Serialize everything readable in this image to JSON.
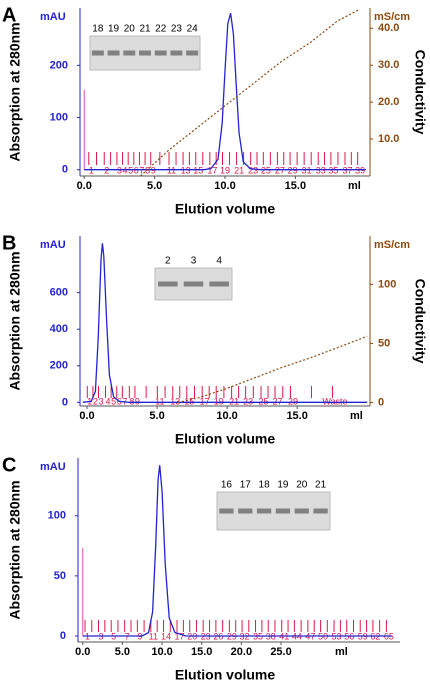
{
  "chart_data": [
    {
      "type": "line",
      "panel_label": "A",
      "y_unit": "mAU",
      "y2_unit": "mS/cm",
      "ylabel": "Absorption at 280nm",
      "y2label": "Conductivity",
      "xlabel": "Elution volume",
      "x_unit": "ml",
      "xlim": [
        -0.3,
        20.3
      ],
      "ylim": [
        -12,
        310
      ],
      "y2lim": [
        0,
        45.5
      ],
      "xticks": [
        {
          "value": 0,
          "label": "0.0"
        },
        {
          "value": 5,
          "label": "5.0"
        },
        {
          "value": 10,
          "label": "10.0"
        },
        {
          "value": 15,
          "label": "15.0"
        }
      ],
      "yticks": [
        0,
        100,
        200
      ],
      "y2ticks": [
        {
          "value": 10,
          "label": "10.0"
        },
        {
          "value": 20,
          "label": "20.0"
        },
        {
          "value": 30,
          "label": "30.0"
        },
        {
          "value": 40,
          "label": "40.0"
        }
      ],
      "series": [
        {
          "name": "Absorption",
          "color": "#2323d6",
          "axis": "y",
          "x": [
            0,
            8.5,
            9,
            9.5,
            9.8,
            10,
            10.2,
            10.4,
            10.6,
            10.8,
            11,
            11.3,
            11.8,
            12.5,
            20
          ],
          "values": [
            0,
            0,
            2,
            20,
            90,
            190,
            280,
            300,
            260,
            160,
            70,
            15,
            2,
            0,
            0
          ]
        },
        {
          "name": "Conductivity",
          "color": "#8b4a10",
          "axis": "y2",
          "dashed": true,
          "x": [
            4,
            6,
            8,
            10,
            12,
            14,
            16,
            18,
            19.5
          ],
          "values": [
            0,
            7,
            13,
            19,
            25,
            31,
            36,
            42,
            45
          ]
        }
      ],
      "fractions": {
        "color": "#e0184a",
        "labels": [
          "1",
          "2",
          "3",
          "4",
          "5",
          "6",
          "7",
          "8",
          "9",
          "11",
          "13",
          "15",
          "17",
          "19",
          "21",
          "23",
          "25",
          "27",
          "29",
          "31",
          "33",
          "35",
          "37",
          "39"
        ],
        "x": [
          0.5,
          1.6,
          2.5,
          2.9,
          3.3,
          3.7,
          4.1,
          4.5,
          4.9,
          6.2,
          7.2,
          8.1,
          9.1,
          10.0,
          11.0,
          12.0,
          12.9,
          13.9,
          14.8,
          15.8,
          16.8,
          17.7,
          18.7,
          19.6
        ]
      },
      "gel_lanes": [
        "18",
        "19",
        "20",
        "21",
        "22",
        "23",
        "24"
      ]
    },
    {
      "type": "line",
      "panel_label": "B",
      "y_unit": "mAU",
      "y2_unit": "mS/cm",
      "ylabel": "Absorption at 280nm",
      "y2label": "Conductivity",
      "xlabel": "Elution volume",
      "x_unit": "ml",
      "xlim": [
        -0.5,
        20.2
      ],
      "ylim": [
        -20,
        910
      ],
      "y2lim": [
        -3,
        141
      ],
      "xticks": [
        {
          "value": 0,
          "label": "0.0"
        },
        {
          "value": 5,
          "label": "5.0"
        },
        {
          "value": 10,
          "label": "10.0"
        },
        {
          "value": 15,
          "label": "15.0"
        }
      ],
      "yticks": [
        0,
        200,
        400,
        600
      ],
      "y2ticks": [
        0,
        50,
        100
      ],
      "series": [
        {
          "name": "Absorption",
          "color": "#2323d6",
          "axis": "y",
          "x": [
            -0.3,
            0.3,
            0.6,
            0.8,
            1.0,
            1.1,
            1.2,
            1.4,
            1.6,
            1.9,
            2.3,
            3,
            20
          ],
          "values": [
            0,
            5,
            60,
            350,
            780,
            870,
            800,
            450,
            150,
            30,
            5,
            0,
            0
          ]
        },
        {
          "name": "Conductivity",
          "color": "#8b4a10",
          "axis": "y2",
          "dashed": true,
          "x": [
            6.5,
            8,
            10,
            12,
            14,
            16,
            18,
            20
          ],
          "values": [
            0,
            4,
            12,
            21,
            30,
            38,
            47,
            56
          ]
        }
      ],
      "fractions": {
        "color": "#e0184a",
        "labels": [
          "1",
          "2",
          "3",
          "4",
          "5",
          "6",
          "7",
          "8",
          "9",
          "11",
          "13",
          "15",
          "17",
          "19",
          "21",
          "23",
          "25",
          "27",
          "29",
          "Waste"
        ],
        "x": [
          0.2,
          0.6,
          1.0,
          1.5,
          1.9,
          2.3,
          2.7,
          3.2,
          3.6,
          5.2,
          6.3,
          7.3,
          8.4,
          9.4,
          10.5,
          11.5,
          12.6,
          13.6,
          14.7,
          17.7
        ]
      },
      "gel_lanes": [
        "2",
        "3",
        "4"
      ]
    },
    {
      "type": "line",
      "panel_label": "C",
      "y_unit": "mAU",
      "ylabel": "Absorption at 280nm",
      "xlabel": "Elution volume",
      "x_unit": "ml",
      "xlim": [
        -0.6,
        40
      ],
      "ylim": [
        -5,
        148
      ],
      "xticks": [
        {
          "value": 0,
          "label": "0.0"
        },
        {
          "value": 5,
          "label": "5.0"
        },
        {
          "value": 10,
          "label": "10.0"
        },
        {
          "value": 15,
          "label": "15.0"
        },
        {
          "value": 20,
          "label": "20.0"
        },
        {
          "value": 25,
          "label": "25.0"
        }
      ],
      "yticks": [
        0,
        50,
        100
      ],
      "series": [
        {
          "name": "Absorption",
          "color": "#2323d6",
          "axis": "y",
          "x": [
            0,
            7.5,
            8.3,
            8.8,
            9.2,
            9.5,
            9.7,
            10,
            10.4,
            10.9,
            11.6,
            13,
            39
          ],
          "values": [
            0,
            0,
            3,
            20,
            75,
            130,
            142,
            120,
            60,
            15,
            3,
            0,
            0
          ]
        }
      ],
      "fractions": {
        "color": "#e0184a",
        "labels": [
          "1",
          "3",
          "5",
          "7",
          "9",
          "11",
          "14",
          "17",
          "20",
          "23",
          "26",
          "29",
          "32",
          "35",
          "38",
          "41",
          "44",
          "47",
          "50",
          "53",
          "56",
          "59",
          "62",
          "65"
        ],
        "x": [
          0.6,
          2.3,
          3.9,
          5.6,
          7.2,
          8.9,
          10.5,
          12.2,
          13.8,
          15.5,
          17.1,
          18.8,
          20.4,
          22.1,
          23.7,
          25.4,
          27.0,
          28.7,
          30.3,
          32.0,
          33.6,
          35.3,
          36.9,
          38.6
        ]
      },
      "gel_lanes": [
        "16",
        "17",
        "18",
        "19",
        "20",
        "21"
      ]
    }
  ]
}
